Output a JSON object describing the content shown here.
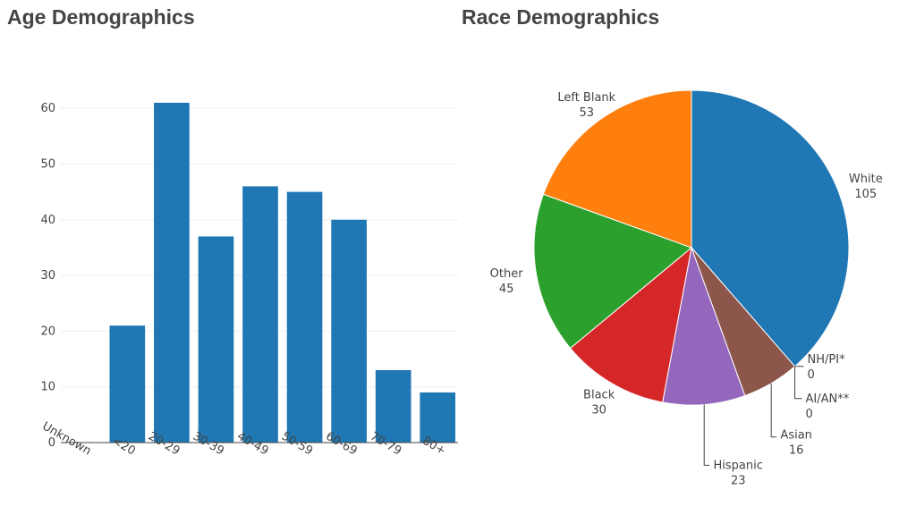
{
  "chart_data": [
    {
      "type": "bar",
      "title": "Age Demographics",
      "categories": [
        "Unknown",
        "<20",
        "20-29",
        "30-39",
        "40-49",
        "50-59",
        "60-69",
        "70-79",
        "80+"
      ],
      "values": [
        0,
        21,
        61,
        37,
        46,
        45,
        40,
        13,
        9
      ],
      "ylim": [
        0,
        65
      ],
      "yticks": [
        0,
        10,
        20,
        30,
        40,
        50,
        60
      ],
      "grid": true,
      "color": "#1f77b4"
    },
    {
      "type": "pie",
      "title": "Race Demographics",
      "slices": [
        {
          "label": "White",
          "value": 105,
          "color": "#1f77b4"
        },
        {
          "label": "NH/PI*",
          "value": 0,
          "color": "#aec7e8"
        },
        {
          "label": "AI/AN**",
          "value": 0,
          "color": "#ffbb78"
        },
        {
          "label": "Asian",
          "value": 16,
          "color": "#8c564b"
        },
        {
          "label": "Hispanic",
          "value": 23,
          "color": "#9467bd"
        },
        {
          "label": "Black",
          "value": 30,
          "color": "#d62728"
        },
        {
          "label": "Other",
          "value": 45,
          "color": "#2ca02c"
        },
        {
          "label": "Left Blank",
          "value": 53,
          "color": "#ff7f0e"
        }
      ],
      "direction": "clockwise",
      "start": "top"
    }
  ]
}
